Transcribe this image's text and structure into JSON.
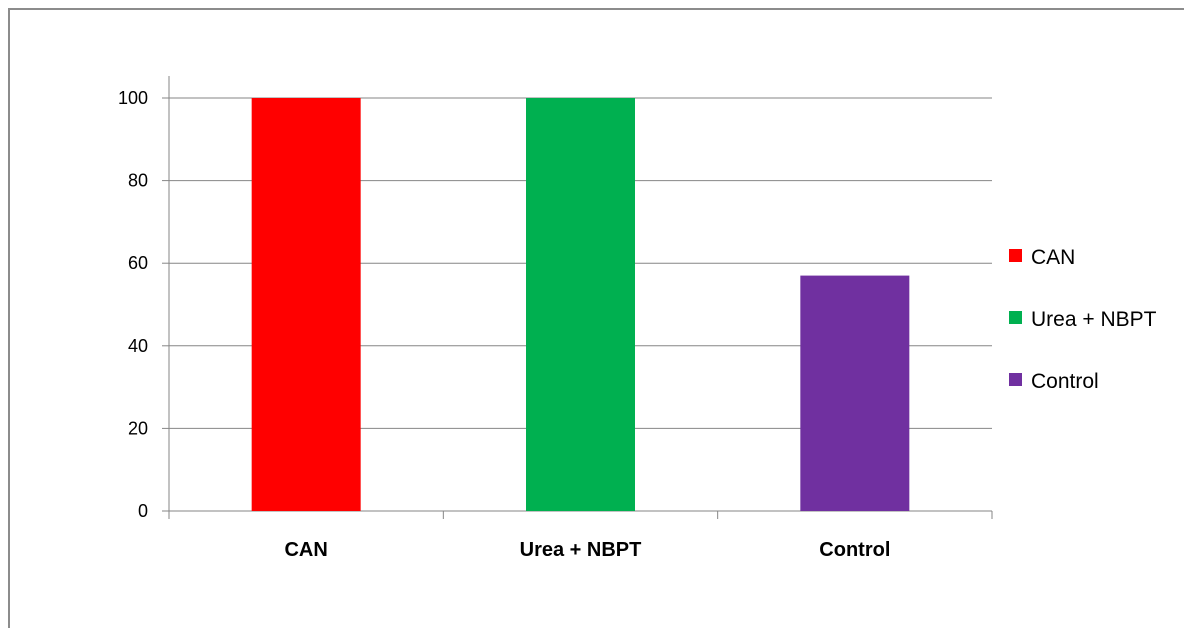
{
  "chart_data": {
    "type": "bar",
    "categories": [
      "CAN",
      "Urea + NBPT",
      "Control"
    ],
    "values": [
      100,
      100,
      57
    ],
    "colors": [
      "#ff0000",
      "#00b050",
      "#7030a0"
    ],
    "title": "",
    "xlabel": "",
    "ylabel": "",
    "ylim": [
      0,
      100
    ],
    "yticks": [
      "0",
      "20",
      "40",
      "60",
      "80",
      "100"
    ],
    "grid": true,
    "legend": {
      "position": "right",
      "entries": [
        "CAN",
        "Urea + NBPT",
        "Control"
      ]
    }
  }
}
